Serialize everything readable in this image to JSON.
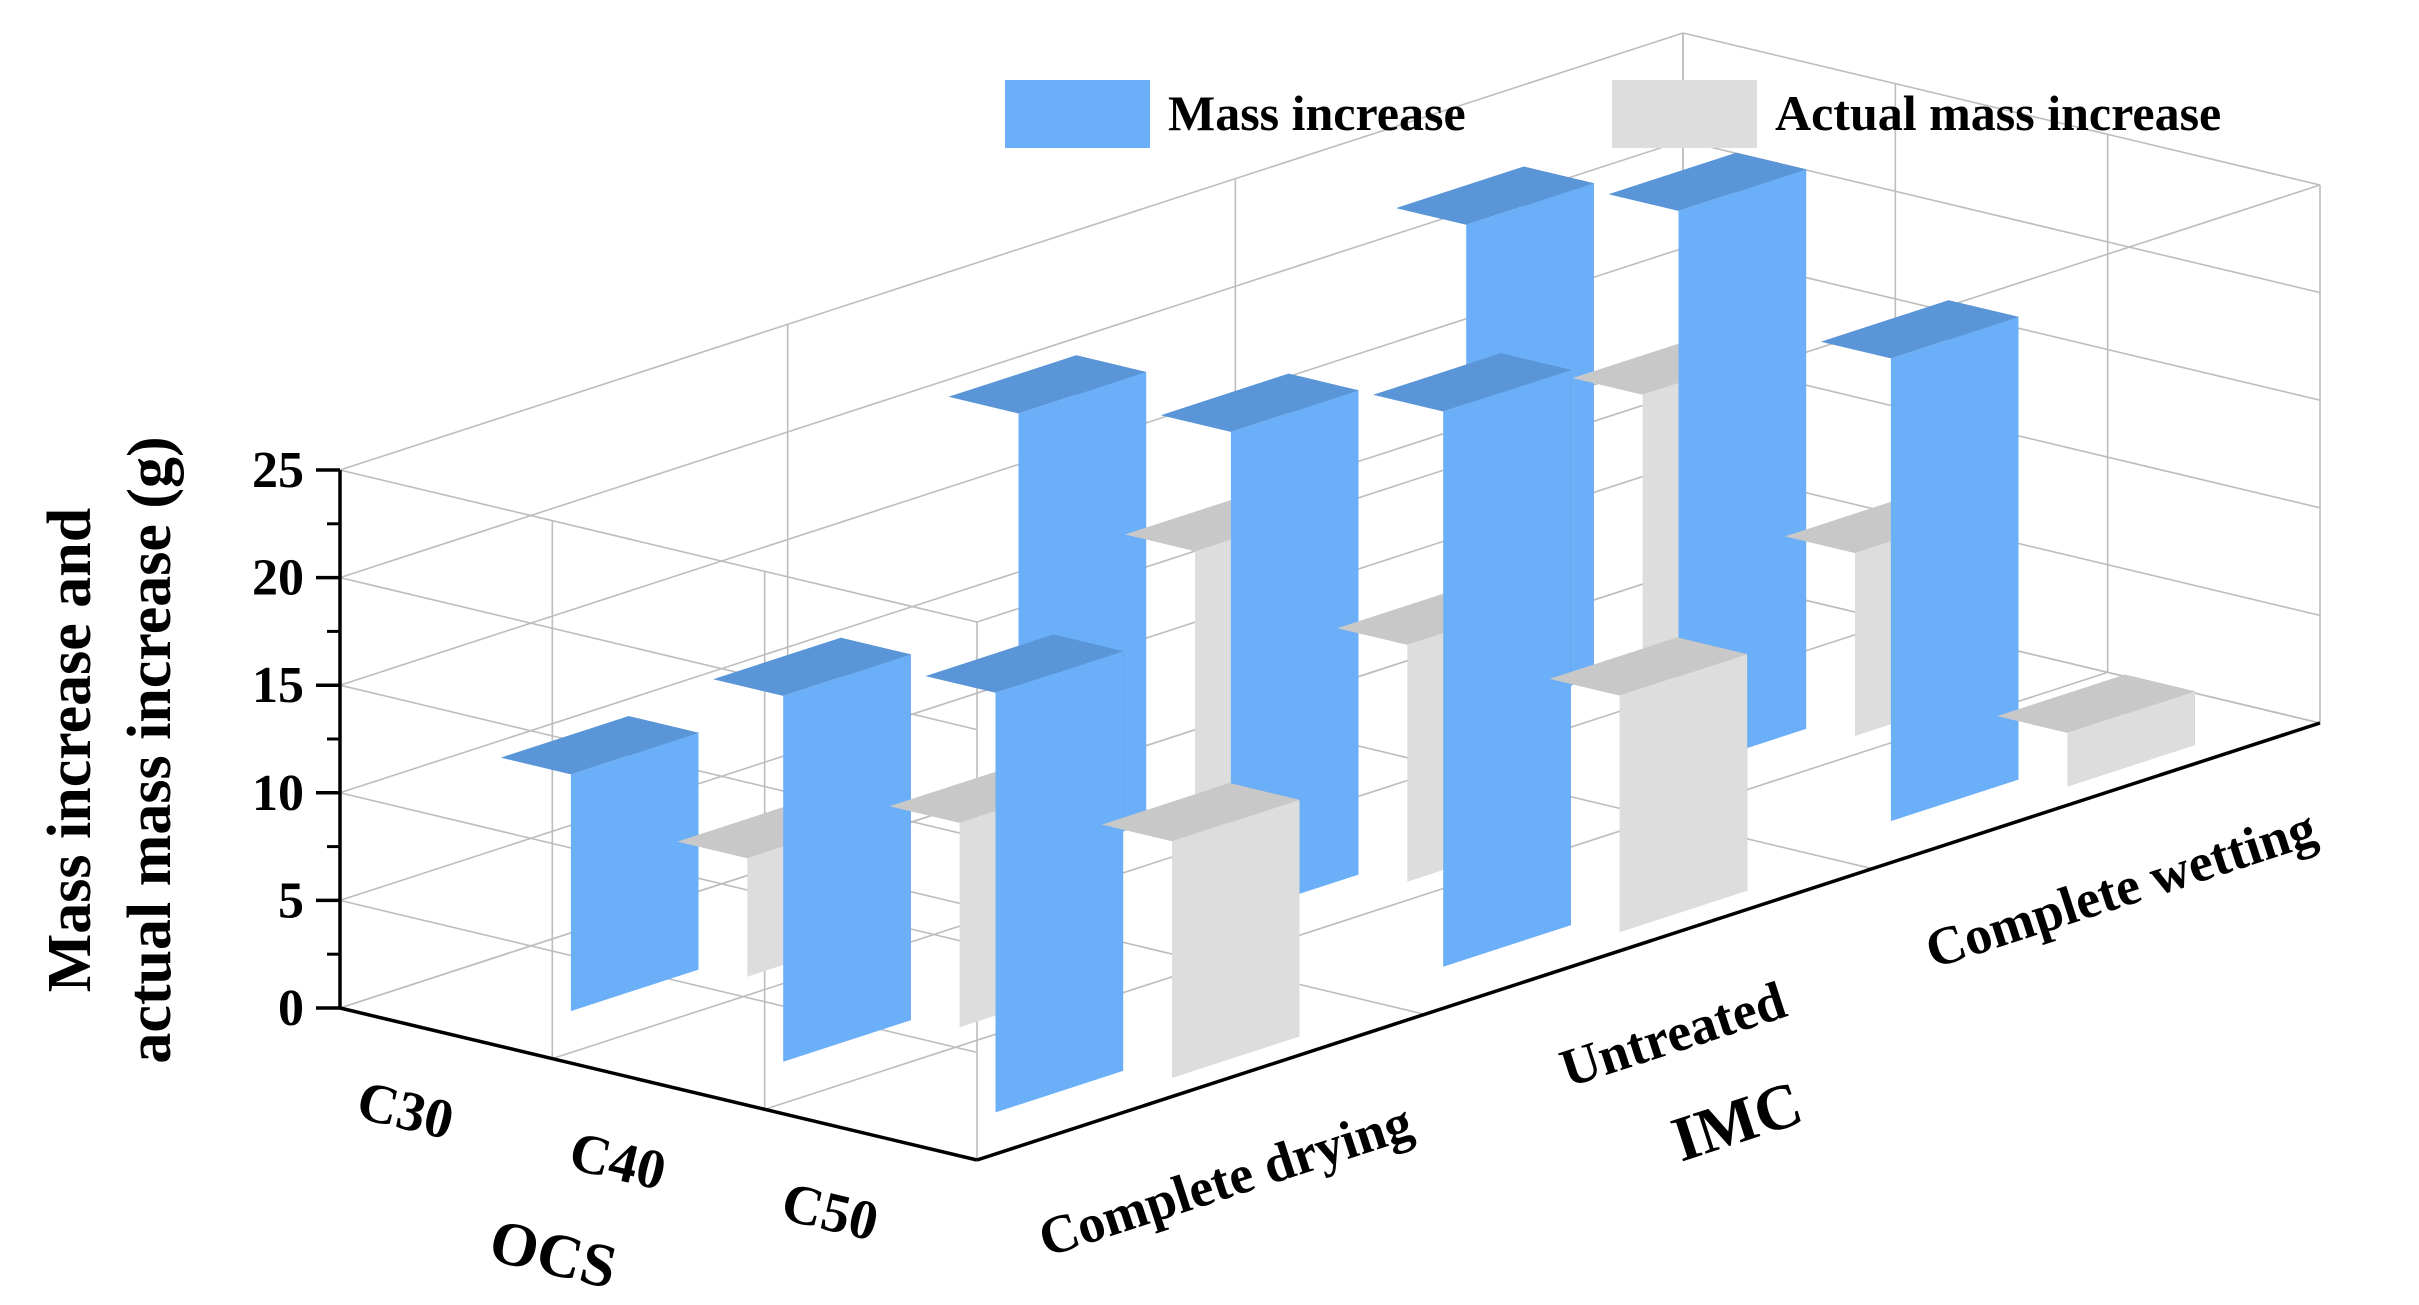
{
  "chart_data": {
    "type": "bar",
    "style": "3d-grouped-bar",
    "title": "",
    "zlabel": [
      "Mass increase and",
      "actual mass increase (g)"
    ],
    "ylabel": "OCS",
    "xlabel": "IMC",
    "zlim": [
      0,
      25
    ],
    "zticks": [
      0,
      5,
      10,
      15,
      20,
      25
    ],
    "grid": true,
    "legend_position": "top-right",
    "ocs_categories": [
      "C30",
      "C40",
      "C50"
    ],
    "imc_categories": [
      "Complete drying",
      "Untreated",
      "Complete wetting"
    ],
    "series": [
      {
        "name": "Mass increase",
        "color": "#6aaff8",
        "side_color": "#4674a6",
        "top_color": "#5a95d8",
        "values": [
          [
            11.0,
            21.0,
            23.0
          ],
          [
            17.0,
            22.5,
            26.0
          ],
          [
            19.5,
            25.8,
            21.5
          ]
        ]
      },
      {
        "name": "Actual mass increase",
        "color": "#dddddd",
        "side_color": "#999999",
        "top_color": "#c8c8c8",
        "values": [
          [
            5.5,
            13.0,
            13.5
          ],
          [
            9.5,
            11.0,
            8.5
          ],
          [
            11.0,
            11.0,
            2.5
          ]
        ]
      }
    ]
  }
}
